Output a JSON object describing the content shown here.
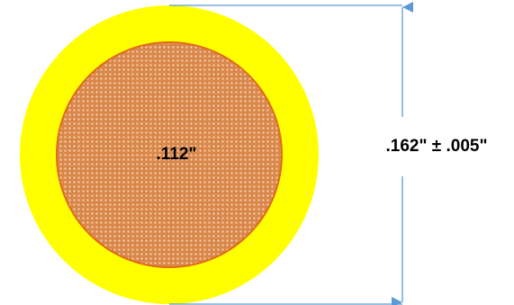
{
  "labels": {
    "inner_diameter": ".112\"",
    "outer_diameter": ".162\" ± .005\""
  },
  "colors": {
    "insulation": "#ffff00",
    "conductor": "#d9874a",
    "conductor_outline": "#e06a1c",
    "conductor_dots": "#f7d6b8",
    "dimension_line": "#5b9bd5",
    "text": "#000000"
  }
}
